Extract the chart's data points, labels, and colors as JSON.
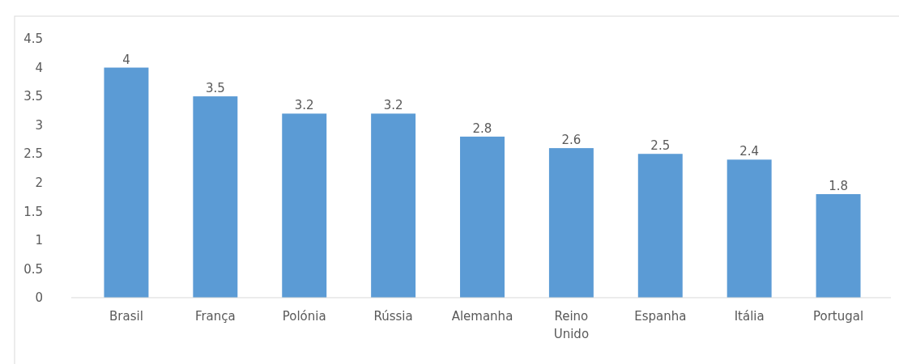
{
  "chart_data": {
    "type": "bar",
    "categories": [
      "Brasil",
      "França",
      "Polónia",
      "Rússia",
      "Alemanha",
      "Reino Unido",
      "Espanha",
      "Itália",
      "Portugal"
    ],
    "values": [
      4,
      3.5,
      3.2,
      3.2,
      2.8,
      2.6,
      2.5,
      2.4,
      1.8
    ],
    "color": "#5b9bd5",
    "ylim": [
      0,
      4.5
    ],
    "yticks": [
      0,
      0.5,
      1,
      1.5,
      2,
      2.5,
      3,
      3.5,
      4,
      4.5
    ],
    "data_labels": true
  }
}
